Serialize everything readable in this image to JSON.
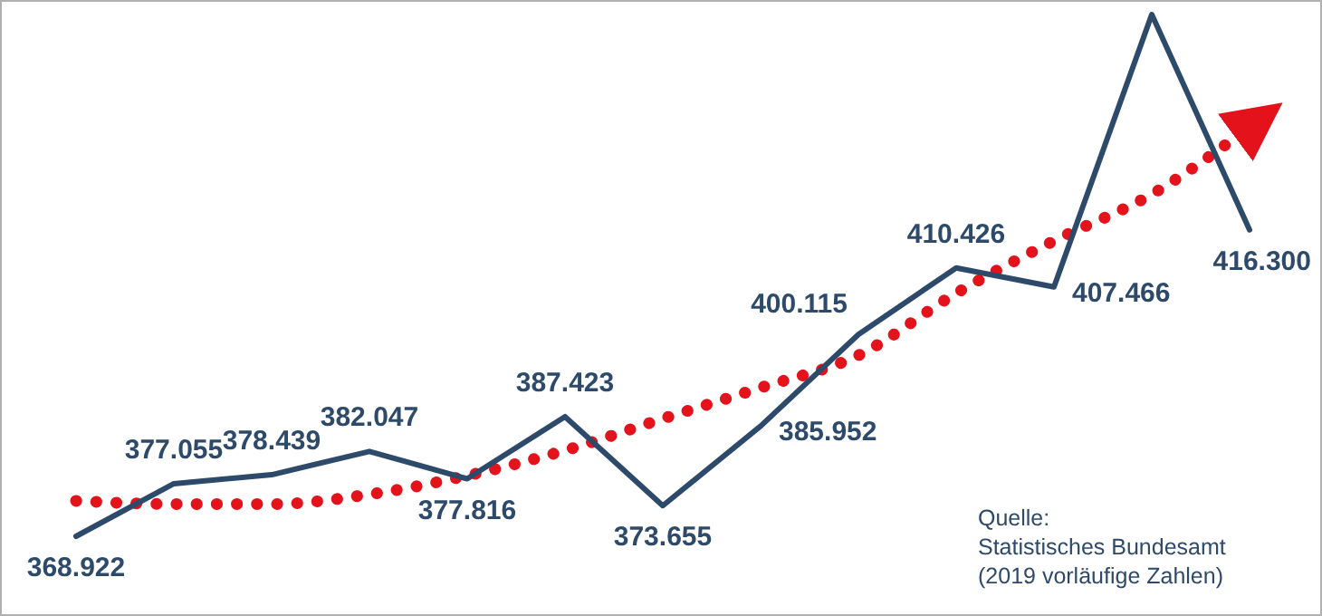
{
  "chart_data": {
    "type": "line",
    "categories": [
      null,
      null,
      null,
      null,
      null,
      null,
      null,
      null,
      null,
      null,
      null,
      null,
      null
    ],
    "series": [
      {
        "color": "#2e4a6b",
        "values": [
          368.922,
          377.055,
          378.439,
          382.047,
          377.816,
          387.423,
          373.655,
          385.952,
          400.115,
          410.426,
          407.466,
          449.6,
          416.3
        ],
        "value_labels": [
          "368.922",
          "377.055",
          "378.439",
          "382.047",
          "377.816",
          "387.423",
          "373.655",
          "385.952",
          "400.115",
          "410.426",
          "407.466",
          null,
          "416.300"
        ],
        "marker": "none",
        "line_style": "solid"
      },
      {
        "color": "#e3121b",
        "values": [
          374.4,
          373.9,
          373.9,
          375.4,
          378.3,
          382.2,
          387.1,
          391.9,
          396.9,
          406.5,
          414.6,
          421.8,
          432.2
        ],
        "marker": "none",
        "line_style": "dotted"
      }
    ],
    "annotations": [
      "Quelle:\nStatistisches Bundesamt\n(2019 vorläufige Zahlen)"
    ]
  }
}
